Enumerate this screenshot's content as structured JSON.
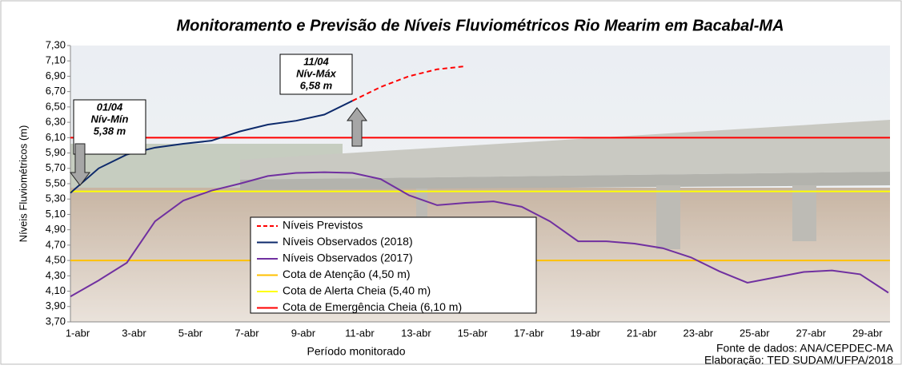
{
  "chart_data": {
    "type": "line",
    "title": "Monitoramento e Previsão de Níveis Fluviométricos Rio Mearim em Bacabal-MA",
    "x_label": "Período monitorado",
    "y_label": "Níveis Fluviométricos (m)",
    "source": [
      "Fonte de dados: ANA/CEPDEC-MA",
      "Elaboração: TED SUDAM/UFPA/2018"
    ],
    "categories": [
      "1-abr",
      null,
      "3-abr",
      null,
      "5-abr",
      null,
      "7-abr",
      null,
      "9-abr",
      null,
      "11-abr",
      null,
      "13-abr",
      null,
      "15-abr",
      null,
      "17-abr",
      null,
      "19-abr",
      null,
      "21-abr",
      null,
      "23-abr",
      null,
      "25-abr",
      null,
      "27-abr",
      null,
      "29-abr",
      null
    ],
    "ylim": [
      3.7,
      7.3
    ],
    "yticks": [
      {
        "value": 3.7,
        "label": "3,70"
      },
      {
        "value": 3.9,
        "label": "3,90"
      },
      {
        "value": 4.1,
        "label": "4,10"
      },
      {
        "value": 4.3,
        "label": "4,30"
      },
      {
        "value": 4.5,
        "label": "4,50"
      },
      {
        "value": 4.7,
        "label": "4,70"
      },
      {
        "value": 4.9,
        "label": "4,90"
      },
      {
        "value": 5.1,
        "label": "5,10"
      },
      {
        "value": 5.3,
        "label": "5,30"
      },
      {
        "value": 5.5,
        "label": "5,50"
      },
      {
        "value": 5.7,
        "label": "5,70"
      },
      {
        "value": 5.9,
        "label": "5,90"
      },
      {
        "value": 6.1,
        "label": "6,10"
      },
      {
        "value": 6.3,
        "label": "6,30"
      },
      {
        "value": 6.5,
        "label": "6,50"
      },
      {
        "value": 6.7,
        "label": "6,70"
      },
      {
        "value": 6.9,
        "label": "6,90"
      },
      {
        "value": 7.1,
        "label": "7,10"
      },
      {
        "value": 7.3,
        "label": "7,30"
      }
    ],
    "series": [
      {
        "name": "Níveis Previstos",
        "color": "#ff0000",
        "dashed": true,
        "values": [
          null,
          null,
          null,
          null,
          null,
          null,
          null,
          null,
          null,
          null,
          6.58,
          6.76,
          6.9,
          6.99,
          7.03,
          null,
          null,
          null,
          null,
          null,
          null,
          null,
          null,
          null,
          null,
          null,
          null,
          null,
          null,
          null
        ]
      },
      {
        "name": "Níveis Observados (2018)",
        "color": "#0d2a6b",
        "values": [
          5.38,
          5.7,
          5.88,
          5.97,
          6.02,
          6.06,
          6.18,
          6.27,
          6.32,
          6.4,
          6.58,
          null,
          null,
          null,
          null,
          null,
          null,
          null,
          null,
          null,
          null,
          null,
          null,
          null,
          null,
          null,
          null,
          null,
          null,
          null
        ]
      },
      {
        "name": "Níveis Observados (2017)",
        "color": "#7030a0",
        "values": [
          4.03,
          4.24,
          4.47,
          5.01,
          5.28,
          5.41,
          5.5,
          5.6,
          5.64,
          5.65,
          5.64,
          5.56,
          5.35,
          5.22,
          5.25,
          5.27,
          5.2,
          5.01,
          4.75,
          4.75,
          4.72,
          4.66,
          4.54,
          4.36,
          4.21,
          4.28,
          4.35,
          4.37,
          4.32,
          4.08
        ]
      }
    ],
    "reference_lines": [
      {
        "name": "Cota de Atenção (4,50 m)",
        "color": "#ffc000",
        "value": 4.5
      },
      {
        "name": "Cota de Alerta Cheia (5,40 m)",
        "color": "#ffff00",
        "value": 5.4
      },
      {
        "name": "Cota de Emergência Cheia (6,10 m)",
        "color": "#ff0000",
        "value": 6.1
      }
    ],
    "annotations": [
      {
        "lines": [
          "01/04",
          "Nív-Mín",
          "5,38 m"
        ]
      },
      {
        "lines": [
          "11/04",
          "Nív-Máx",
          "6,58 m"
        ]
      }
    ]
  }
}
